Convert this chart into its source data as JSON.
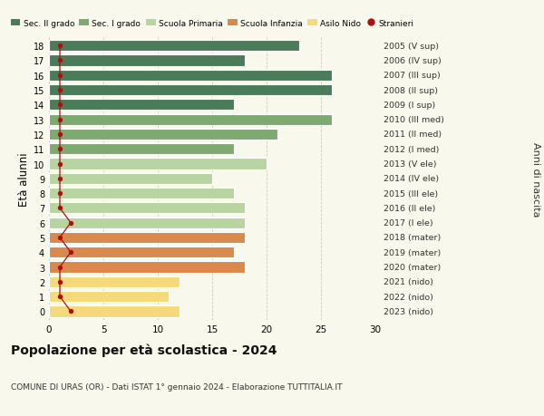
{
  "ages": [
    18,
    17,
    16,
    15,
    14,
    13,
    12,
    11,
    10,
    9,
    8,
    7,
    6,
    5,
    4,
    3,
    2,
    1,
    0
  ],
  "right_labels": [
    "2005 (V sup)",
    "2006 (IV sup)",
    "2007 (III sup)",
    "2008 (II sup)",
    "2009 (I sup)",
    "2010 (III med)",
    "2011 (II med)",
    "2012 (I med)",
    "2013 (V ele)",
    "2014 (IV ele)",
    "2015 (III ele)",
    "2016 (II ele)",
    "2017 (I ele)",
    "2018 (mater)",
    "2019 (mater)",
    "2020 (mater)",
    "2021 (nido)",
    "2022 (nido)",
    "2023 (nido)"
  ],
  "values": [
    23,
    18,
    26,
    26,
    17,
    26,
    21,
    17,
    20,
    15,
    17,
    18,
    18,
    18,
    17,
    18,
    12,
    11,
    12
  ],
  "stranieri": [
    1,
    1,
    1,
    1,
    1,
    1,
    1,
    1,
    1,
    1,
    1,
    1,
    2,
    1,
    2,
    1,
    1,
    1,
    2
  ],
  "bar_colors": [
    "#4a7c59",
    "#4a7c59",
    "#4a7c59",
    "#4a7c59",
    "#4a7c59",
    "#7daa6f",
    "#7daa6f",
    "#7daa6f",
    "#b8d4a0",
    "#b8d4a0",
    "#b8d4a0",
    "#b8d4a0",
    "#b8d4a0",
    "#d9894a",
    "#d9894a",
    "#d9894a",
    "#f5d97a",
    "#f5d97a",
    "#f5d97a"
  ],
  "legend_labels": [
    "Sec. II grado",
    "Sec. I grado",
    "Scuola Primaria",
    "Scuola Infanzia",
    "Asilo Nido",
    "Stranieri"
  ],
  "legend_colors": [
    "#4a7c59",
    "#7daa6f",
    "#b8d4a0",
    "#d9894a",
    "#f5d97a",
    "#a02020"
  ],
  "title": "Popolazione per età scolastica - 2024",
  "subtitle": "COMUNE DI URAS (OR) - Dati ISTAT 1° gennaio 2024 - Elaborazione TUTTITALIA.IT",
  "ylabel_left": "Età alunni",
  "ylabel_right": "Anni di nascita",
  "xlim": [
    0,
    30
  ],
  "xticks": [
    0,
    5,
    10,
    15,
    20,
    25,
    30
  ],
  "bg_color": "#f8f8ec",
  "bar_height": 0.75,
  "stranieri_color": "#aa1111",
  "stranieri_line_color": "#aa1111"
}
